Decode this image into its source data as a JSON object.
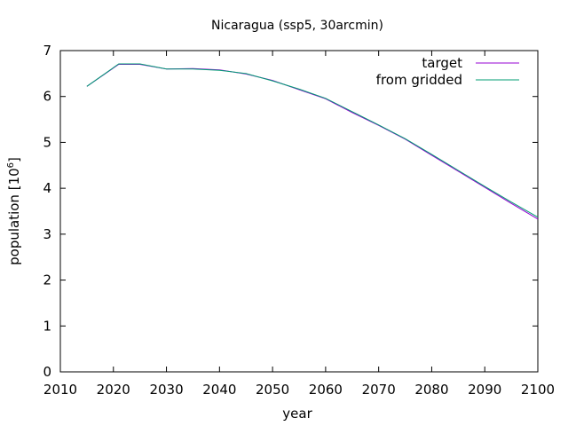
{
  "chart_data": {
    "type": "line",
    "title": "Nicaragua (ssp5, 30arcmin)",
    "xlabel": "year",
    "ylabel_prefix": "population [10",
    "ylabel_exponent": "6",
    "ylabel_suffix": "]",
    "xlim": [
      2010,
      2100
    ],
    "ylim": [
      0,
      7
    ],
    "xticks": [
      "2010",
      "2020",
      "2030",
      "2040",
      "2050",
      "2060",
      "2070",
      "2080",
      "2090",
      "2100"
    ],
    "yticks": [
      "0",
      "1",
      "2",
      "3",
      "4",
      "5",
      "6",
      "7"
    ],
    "legend_position": "top-right",
    "series": [
      {
        "name": "target",
        "color": "#9400d3",
        "x": [
          2015,
          2021,
          2025,
          2030,
          2035,
          2040,
          2045,
          2050,
          2055,
          2060,
          2065,
          2070,
          2075,
          2080,
          2085,
          2090,
          2095,
          2100
        ],
        "y": [
          6.22,
          6.7,
          6.7,
          6.6,
          6.61,
          6.58,
          6.49,
          6.35,
          6.15,
          5.95,
          5.65,
          5.37,
          5.07,
          4.72,
          4.37,
          4.02,
          3.67,
          3.33
        ]
      },
      {
        "name": "from gridded",
        "color": "#009e73",
        "x": [
          2015,
          2021,
          2025,
          2030,
          2035,
          2040,
          2045,
          2050,
          2055,
          2060,
          2065,
          2070,
          2075,
          2080,
          2085,
          2090,
          2095,
          2100
        ],
        "y": [
          6.22,
          6.71,
          6.71,
          6.6,
          6.6,
          6.57,
          6.5,
          6.34,
          6.16,
          5.96,
          5.67,
          5.38,
          5.08,
          4.74,
          4.39,
          4.04,
          3.7,
          3.37
        ]
      }
    ]
  }
}
